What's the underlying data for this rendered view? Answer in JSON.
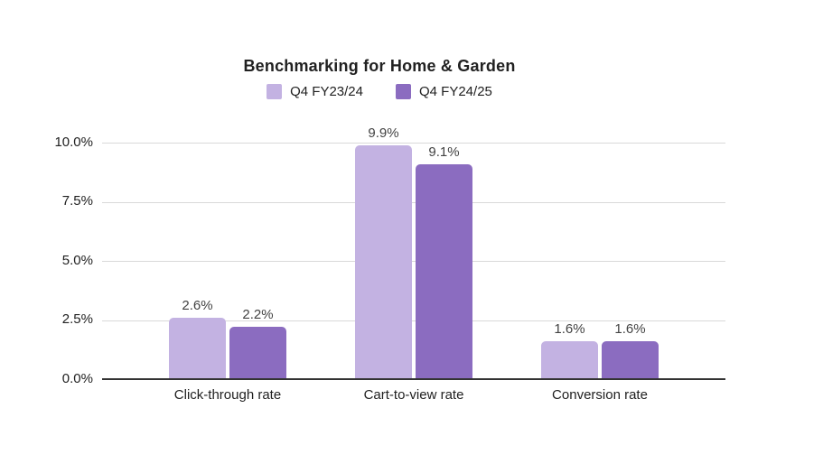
{
  "chart_data": {
    "type": "bar",
    "title": "Benchmarking for Home & Garden",
    "categories": [
      "Click-through rate",
      "Cart-to-view rate",
      "Conversion rate"
    ],
    "series": [
      {
        "name": "Q4 FY23/24",
        "color": "#c3b2e2",
        "values": [
          2.6,
          9.9,
          1.6
        ],
        "labels": [
          "2.6%",
          "9.9%",
          "1.6%"
        ]
      },
      {
        "name": "Q4 FY24/25",
        "color": "#8b6cc0",
        "values": [
          2.2,
          9.1,
          1.6
        ],
        "labels": [
          "2.2%",
          "9.1%",
          "1.6%"
        ]
      }
    ],
    "xlabel": "",
    "ylabel": "",
    "y_ticks": [
      "0.0%",
      "2.5%",
      "5.0%",
      "7.5%",
      "10.0%"
    ],
    "ylim": [
      0,
      10
    ],
    "grid": true,
    "legend_position": "top"
  },
  "colors": {
    "series_1": "#c3b2e2",
    "series_2": "#8b6cc0",
    "gridline": "#d9d9d9",
    "baseline": "#333333",
    "title_text": "#212121",
    "value_label_text": "#424242"
  }
}
